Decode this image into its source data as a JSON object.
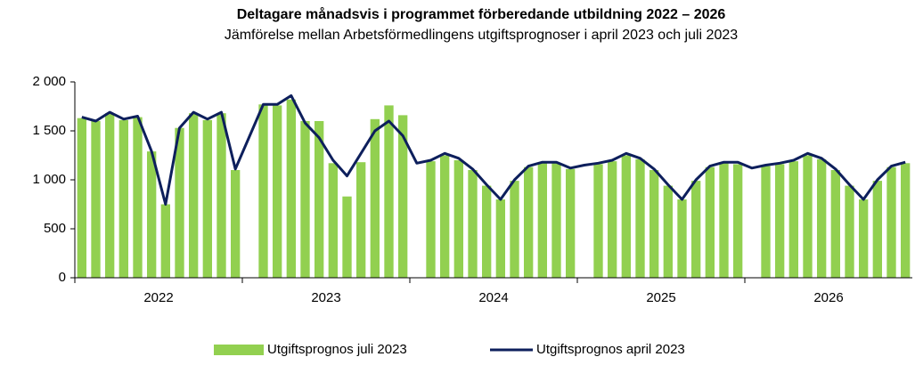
{
  "chart_data": {
    "type": "bar_line",
    "title": "Deltagare månadsvis i programmet förberedande utbildning 2022 – 2026",
    "subtitle": "Jämförelse mellan Arbetsförmedlingens utgiftsprognoser i april 2023 och juli 2023",
    "groups": [
      "2022",
      "2023",
      "2024",
      "2025",
      "2026"
    ],
    "categories": [
      null,
      null,
      null,
      null,
      null,
      null,
      null,
      null,
      null,
      null,
      null,
      null,
      null,
      null,
      null,
      null,
      null,
      null,
      null,
      null,
      null,
      null,
      null,
      null,
      null,
      null,
      null,
      null,
      null,
      null,
      null,
      null,
      null,
      null,
      null,
      null,
      null,
      null,
      null,
      null,
      null,
      null,
      null,
      null,
      null,
      null,
      null,
      null,
      null,
      null,
      null,
      null,
      null,
      null,
      null,
      null,
      null,
      null,
      null,
      null
    ],
    "series": [
      {
        "name": "Utgiftsprognos juli 2023",
        "kind": "bar",
        "color": "#92d050",
        "values": [
          1630,
          1600,
          1680,
          1610,
          1640,
          1290,
          750,
          1530,
          1680,
          1610,
          1680,
          1100,
          null,
          1770,
          1760,
          1820,
          1600,
          1600,
          1170,
          830,
          1180,
          1620,
          1760,
          1660,
          null,
          1190,
          1250,
          1200,
          1100,
          940,
          800,
          990,
          1130,
          1170,
          1170,
          1110,
          null,
          1160,
          1190,
          1250,
          1210,
          1100,
          940,
          800,
          990,
          1130,
          1170,
          1160,
          null,
          1140,
          1160,
          1190,
          1250,
          1210,
          1100,
          940,
          800,
          990,
          1130,
          1170
        ]
      },
      {
        "name": "Utgiftsprognos april 2023",
        "kind": "line",
        "color": "#0d1f5c",
        "values": [
          1640,
          1600,
          1690,
          1620,
          1650,
          1290,
          750,
          1530,
          1690,
          1620,
          1690,
          1110,
          1440,
          1770,
          1770,
          1860,
          1580,
          1430,
          1200,
          1040,
          1270,
          1500,
          1600,
          1450,
          1170,
          1200,
          1270,
          1220,
          1110,
          950,
          800,
          1000,
          1140,
          1180,
          1180,
          1120,
          1150,
          1170,
          1200,
          1270,
          1220,
          1110,
          950,
          800,
          1000,
          1140,
          1180,
          1180,
          1120,
          1150,
          1170,
          1200,
          1270,
          1220,
          1110,
          950,
          800,
          1000,
          1140,
          1180
        ]
      }
    ],
    "ylim": [
      0,
      2000
    ],
    "yticks": [
      0,
      500,
      {
        "value": 1000,
        "label": "1 000"
      },
      {
        "value": 1500,
        "label": "1 500"
      },
      {
        "value": 2000,
        "label": "2 000"
      }
    ],
    "legend": "bottom"
  }
}
